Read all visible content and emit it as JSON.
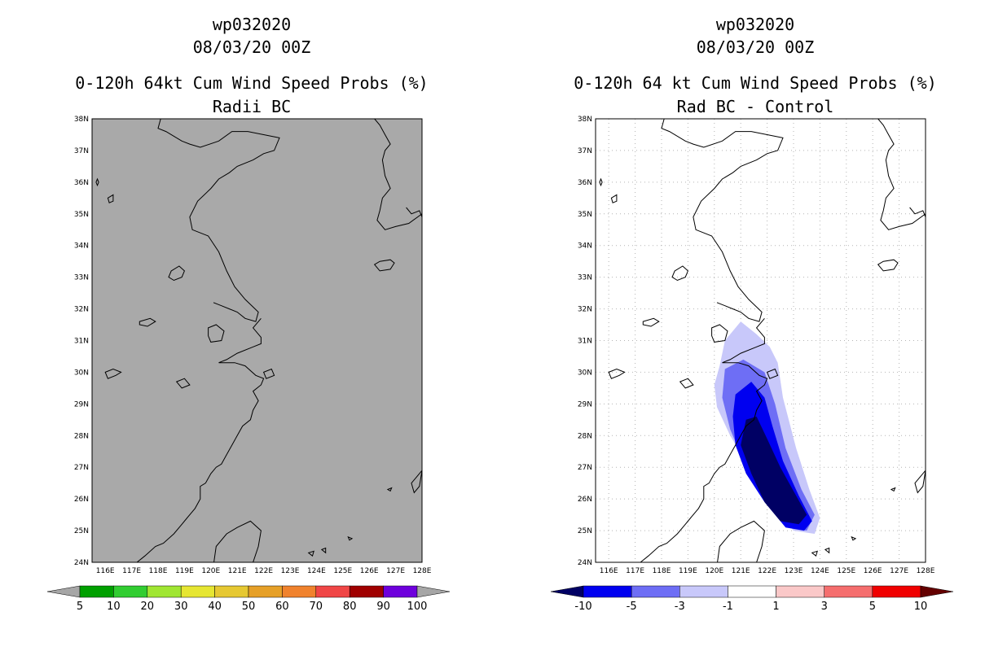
{
  "left_panel": {
    "storm_id": "wp032020",
    "datetime": "08/03/20 00Z",
    "title_line1": "0-120h 64kt Cum Wind Speed Probs (%)",
    "title_line2": "Radii BC",
    "colorbar": {
      "labels": [
        "5",
        "10",
        "20",
        "30",
        "40",
        "50",
        "60",
        "70",
        "80",
        "90",
        "100"
      ],
      "colors": [
        "#a6a6a6",
        "#00a000",
        "#31cd31",
        "#a0e632",
        "#e6e632",
        "#e6c832",
        "#e6a028",
        "#f0822d",
        "#f04646",
        "#a00000",
        "#6e00dc",
        "#a6a6a6"
      ]
    }
  },
  "right_panel": {
    "storm_id": "wp032020",
    "datetime": "08/03/20 00Z",
    "title_line1": "0-120h 64 kt Cum Wind Speed Probs (%)",
    "title_line2": "Rad BC - Control",
    "colorbar": {
      "labels": [
        "-10",
        "-5",
        "-3",
        "-1",
        "1",
        "3",
        "5",
        "10"
      ],
      "colors": [
        "#000064",
        "#0000f0",
        "#6e6ef5",
        "#c8c8fa",
        "#ffffff",
        "#fac8c8",
        "#f56e6e",
        "#f00000",
        "#640000"
      ]
    }
  },
  "map": {
    "lat_labels": [
      "38N",
      "37N",
      "36N",
      "35N",
      "34N",
      "33N",
      "32N",
      "31N",
      "30N",
      "29N",
      "28N",
      "27N",
      "26N",
      "25N",
      "24N"
    ],
    "lon_labels": [
      "116E",
      "117E",
      "118E",
      "119E",
      "120E",
      "121E",
      "122E",
      "123E",
      "124E",
      "125E",
      "126E",
      "127E",
      "128E"
    ]
  },
  "colors": {
    "land_background": "#a9a9a9",
    "grid": "#b4b4b4",
    "coast": "#000000"
  },
  "chart_data": {
    "type": "heatmap",
    "title": "0-120h 64 kt Cum Wind Speed Probs (%) Rad BC - Control",
    "xlim": [
      115.5,
      128
    ],
    "ylim": [
      24,
      38
    ],
    "levels": [
      -10,
      -5,
      -3,
      -1,
      1,
      3,
      5,
      10
    ],
    "contours": [
      {
        "level": "-1 to -3",
        "color": "#c8c8fa",
        "lonlat": [
          [
            120.0,
            29.6
          ],
          [
            120.2,
            30.2
          ],
          [
            120.4,
            31.0
          ],
          [
            121.0,
            31.6
          ],
          [
            121.6,
            31.2
          ],
          [
            122.1,
            30.8
          ],
          [
            122.4,
            30.3
          ],
          [
            122.6,
            29.2
          ],
          [
            123.1,
            27.6
          ],
          [
            123.6,
            26.3
          ],
          [
            124.0,
            25.4
          ],
          [
            123.8,
            24.9
          ],
          [
            123.0,
            25.0
          ],
          [
            122.2,
            25.8
          ],
          [
            121.4,
            26.9
          ],
          [
            120.6,
            28.0
          ],
          [
            120.1,
            28.9
          ]
        ]
      },
      {
        "level": "-3 to -5",
        "color": "#6e6ef5",
        "lonlat": [
          [
            120.4,
            30.1
          ],
          [
            121.1,
            30.4
          ],
          [
            121.9,
            30.0
          ],
          [
            122.3,
            29.0
          ],
          [
            122.7,
            27.6
          ],
          [
            123.3,
            26.3
          ],
          [
            123.8,
            25.5
          ],
          [
            123.5,
            25.0
          ],
          [
            122.8,
            25.1
          ],
          [
            122.0,
            25.9
          ],
          [
            121.2,
            27.0
          ],
          [
            120.6,
            28.2
          ],
          [
            120.3,
            29.2
          ]
        ]
      },
      {
        "level": "-5 to -10",
        "color": "#0000f0",
        "lonlat": [
          [
            120.8,
            29.3
          ],
          [
            121.4,
            29.7
          ],
          [
            121.9,
            29.2
          ],
          [
            122.2,
            28.3
          ],
          [
            122.6,
            27.2
          ],
          [
            123.2,
            26.1
          ],
          [
            123.7,
            25.3
          ],
          [
            123.4,
            25.0
          ],
          [
            122.7,
            25.1
          ],
          [
            121.9,
            25.9
          ],
          [
            121.2,
            26.8
          ],
          [
            120.8,
            27.7
          ],
          [
            120.7,
            28.6
          ]
        ]
      },
      {
        "level": "<= -10",
        "color": "#000064",
        "lonlat": [
          [
            121.2,
            28.5
          ],
          [
            121.6,
            28.6
          ],
          [
            122.0,
            27.9
          ],
          [
            122.5,
            27.0
          ],
          [
            123.1,
            26.1
          ],
          [
            123.5,
            25.5
          ],
          [
            123.2,
            25.2
          ],
          [
            122.5,
            25.3
          ],
          [
            121.9,
            25.9
          ],
          [
            121.4,
            26.8
          ],
          [
            121.0,
            27.7
          ]
        ]
      }
    ]
  }
}
